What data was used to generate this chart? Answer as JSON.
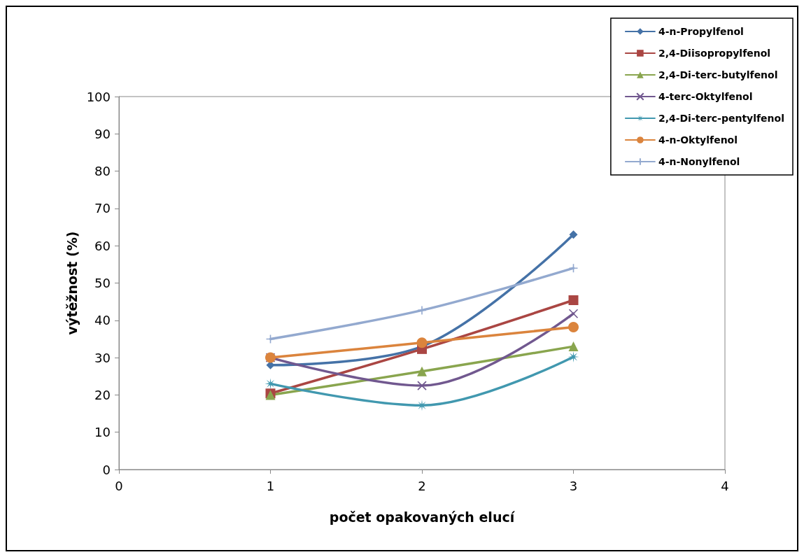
{
  "chart_data": {
    "type": "line",
    "xlabel": "počet opakovaných elucí",
    "ylabel": "výtěžnost (%)",
    "xlim": [
      0,
      4
    ],
    "xticks": [
      0,
      1,
      2,
      3,
      4
    ],
    "ylim": [
      0,
      100
    ],
    "yticks": [
      0,
      10,
      20,
      30,
      40,
      50,
      60,
      70,
      80,
      90,
      100
    ],
    "grid": false,
    "legend": "top right",
    "line_style": "solid",
    "series": [
      {
        "name": "4-n-Propylfenol",
        "color": "#4572a7",
        "marker": "diamond",
        "x": [
          1,
          2,
          3
        ],
        "values": [
          28,
          33,
          63
        ]
      },
      {
        "name": "2,4-Diisopropylfenol",
        "color": "#aa4643",
        "marker": "square",
        "x": [
          1,
          2,
          3
        ],
        "values": [
          20.4,
          32.3,
          45.4
        ]
      },
      {
        "name": "2,4-Di-terc-butylfenol",
        "color": "#89a54e",
        "marker": "triangle",
        "x": [
          1,
          2,
          3
        ],
        "values": [
          20,
          26.3,
          33
        ]
      },
      {
        "name": "4-terc-Oktylfenol",
        "color": "#71588f",
        "marker": "cross",
        "x": [
          1,
          2,
          3
        ],
        "values": [
          30,
          22.5,
          41.8
        ]
      },
      {
        "name": "2,4-Di-terc-pentylfenol",
        "color": "#4198af",
        "marker": "star",
        "x": [
          1,
          2,
          3
        ],
        "values": [
          23,
          17.2,
          30.2
        ]
      },
      {
        "name": "4-n-Oktylfenol",
        "color": "#db843d",
        "marker": "circle",
        "x": [
          1,
          2,
          3
        ],
        "values": [
          30,
          34,
          38.2
        ]
      },
      {
        "name": "4-n-Nonylfenol",
        "color": "#93a9cf",
        "marker": "cross",
        "x": [
          1,
          2,
          3
        ],
        "values": [
          35,
          42.7,
          54
        ]
      }
    ]
  }
}
